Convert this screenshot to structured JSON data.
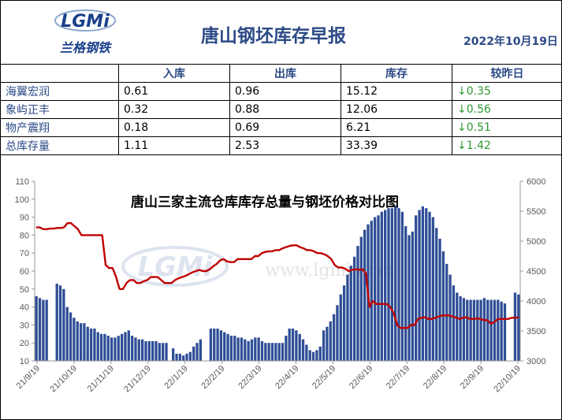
{
  "header": {
    "logo_text": "LGMi",
    "logo_sub": "兰格钢铁",
    "title": "唐山钢坯库存早报",
    "date": "2022年10月19日"
  },
  "table": {
    "columns": [
      "",
      "入库",
      "出库",
      "库存",
      "较昨日"
    ],
    "rows": [
      {
        "name": "海翼宏润",
        "in": "0.61",
        "out": "0.96",
        "stock": "15.12",
        "change": "↓0.35"
      },
      {
        "name": "象屿正丰",
        "in": "0.32",
        "out": "0.88",
        "stock": "12.06",
        "change": "↓0.56"
      },
      {
        "name": "物产震翔",
        "in": "0.18",
        "out": "0.69",
        "stock": "6.21",
        "change": "↓0.51"
      },
      {
        "name": "总库存量",
        "in": "1.11",
        "out": "2.53",
        "stock": "33.39",
        "change": "↓1.42"
      }
    ]
  },
  "colors": {
    "bars": "#2f4e96",
    "line": "#c00000",
    "header_text": "#2c4a86",
    "change_text": "#2e9a33"
  },
  "chart_data": {
    "type": "bar+line",
    "title": "唐山三家主流仓库库存总量与钢坯价格对比图",
    "watermark": "www.lgmi.com",
    "x_tick_labels": [
      "21/9/19",
      "21/10/19",
      "21/11/19",
      "21/12/19",
      "22/1/19",
      "22/2/19",
      "22/3/19",
      "22/4/19",
      "22/5/19",
      "22/6/19",
      "22/7/19",
      "22/8/19",
      "22/9/19",
      "22/10/19"
    ],
    "y_left": {
      "min": 10,
      "max": 110,
      "step": 10
    },
    "y_right": {
      "min": 3000,
      "max": 6000,
      "step": 500
    },
    "grid": false,
    "series": [
      {
        "kind": "bar",
        "axis": "left",
        "values": [
          46,
          45,
          44,
          44,
          null,
          null,
          53,
          52,
          50,
          40,
          37,
          34,
          32,
          31,
          31,
          29,
          28,
          28,
          26,
          25,
          25,
          24,
          23,
          23,
          24,
          25,
          26,
          27,
          24,
          23,
          22,
          22,
          21,
          21,
          21,
          21,
          20,
          20,
          20,
          null,
          17,
          14,
          14,
          13,
          14,
          15,
          18,
          20,
          22,
          null,
          null,
          28,
          28,
          28,
          27,
          26,
          25,
          24,
          24,
          23,
          23,
          22,
          21,
          22,
          23,
          23,
          21,
          20,
          20,
          20,
          20,
          20,
          20,
          24,
          28,
          28,
          27,
          25,
          22,
          19,
          16,
          15,
          16,
          18,
          27,
          29,
          32,
          36,
          41,
          47,
          52,
          58,
          63,
          68,
          74,
          79,
          83,
          86,
          88,
          90,
          91,
          93,
          94,
          95,
          95,
          96,
          95,
          93,
          85,
          80,
          82,
          91,
          94,
          96,
          95,
          93,
          90,
          84,
          78,
          71,
          64,
          58,
          52,
          48,
          46,
          45,
          44,
          44,
          44,
          44,
          44,
          45,
          44,
          44,
          44,
          44,
          43,
          42,
          null,
          null,
          48,
          47
        ]
      },
      {
        "kind": "line",
        "axis": "right",
        "values": [
          5230,
          5230,
          5200,
          5200,
          5210,
          5210,
          5220,
          5220,
          5230,
          5300,
          5300,
          5250,
          5200,
          5100,
          5100,
          5100,
          5100,
          5100,
          5100,
          5100,
          4600,
          4550,
          4550,
          4400,
          4200,
          4200,
          4300,
          4350,
          4350,
          4300,
          4300,
          4330,
          4350,
          4400,
          4400,
          4400,
          4350,
          4300,
          4300,
          4300,
          4350,
          4380,
          4400,
          4420,
          4450,
          4480,
          4500,
          4520,
          4500,
          4500,
          4530,
          4580,
          4620,
          4680,
          4700,
          4660,
          4650,
          4650,
          4700,
          4700,
          4700,
          4700,
          4700,
          4750,
          4750,
          4800,
          4820,
          4830,
          4830,
          4850,
          4850,
          4880,
          4900,
          4920,
          4930,
          4930,
          4900,
          4880,
          4850,
          4850,
          4830,
          4800,
          4800,
          4780,
          4750,
          4700,
          4600,
          4560,
          4560,
          4540,
          4500,
          4520,
          4530,
          4520,
          4530,
          4460,
          3900,
          4000,
          3950,
          3950,
          3950,
          3950,
          3900,
          3800,
          3600,
          3550,
          3550,
          3550,
          3600,
          3600,
          3700,
          3720,
          3730,
          3700,
          3700,
          3720,
          3740,
          3760,
          3760,
          3760,
          3740,
          3720,
          3700,
          3720,
          3730,
          3700,
          3700,
          3710,
          3700,
          3680,
          3680,
          3620,
          3650,
          3700,
          3700,
          3700,
          3700,
          3720,
          3720,
          3730
        ]
      }
    ]
  }
}
